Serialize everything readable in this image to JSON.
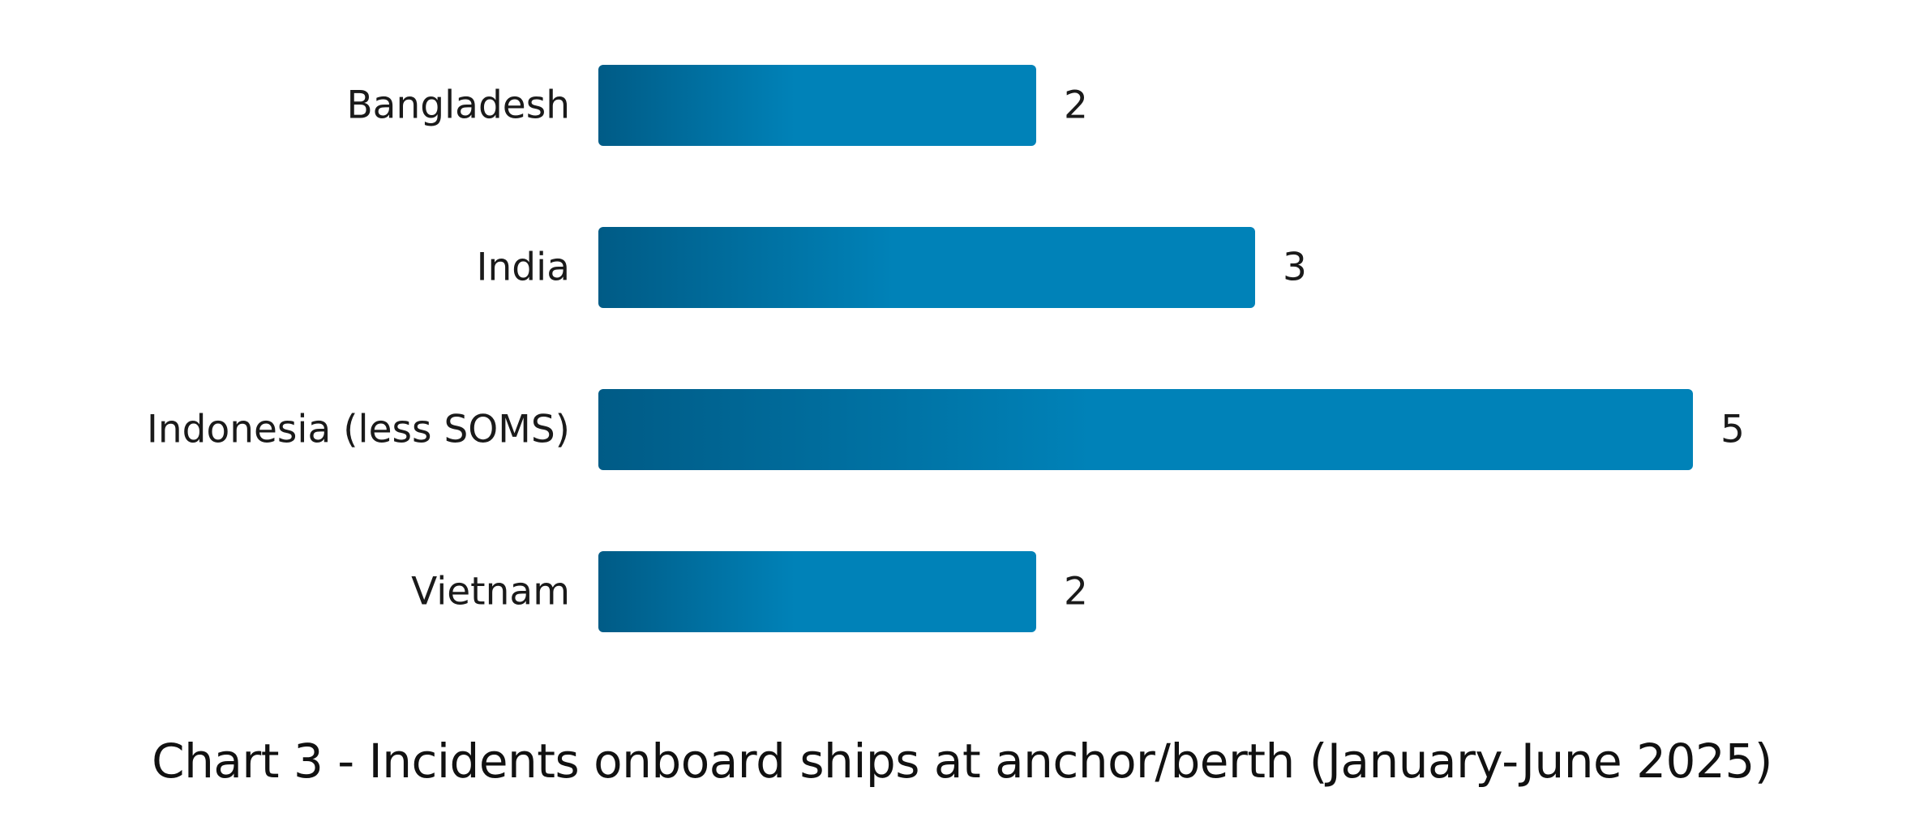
{
  "chart_data": {
    "type": "bar",
    "orientation": "horizontal",
    "title": "Chart 3 - Incidents onboard ships at anchor/berth (January-June 2025)",
    "categories": [
      "Bangladesh",
      "India",
      "Indonesia (less SOMS)",
      "Vietnam"
    ],
    "values": [
      2,
      3,
      5,
      2
    ],
    "xlim": [
      0,
      5
    ],
    "grid": false,
    "legend": "none",
    "bar_color_dark": "#005b86",
    "bar_color_light": "#0082b8"
  }
}
